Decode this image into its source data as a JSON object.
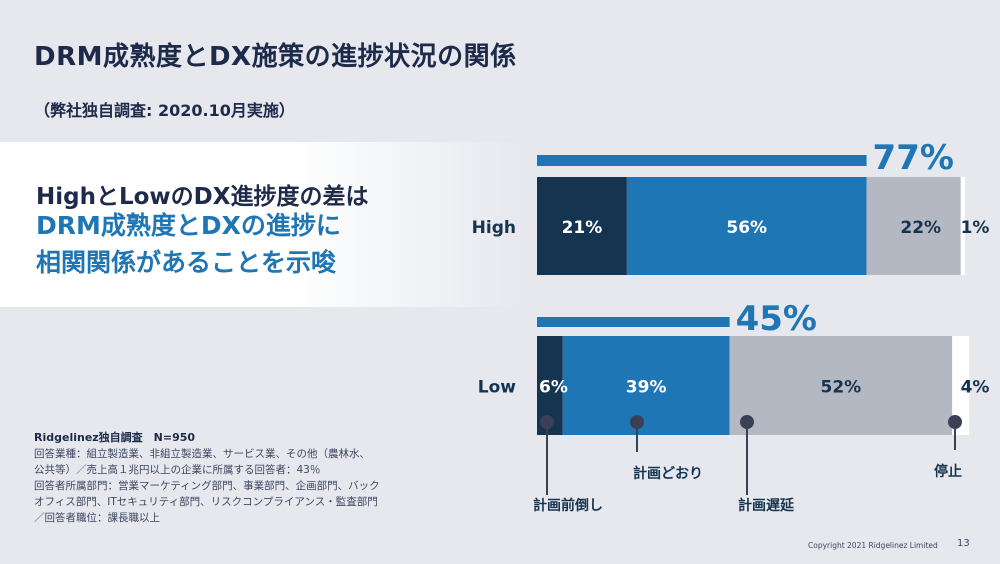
{
  "page": {
    "title": "DRM成熟度とDX施策の進捗状況の関係",
    "subtitle": "（弊社独自調査: 2020.10月実施）",
    "highlight": {
      "line1": "HighとLowのDX進捗度の差は",
      "line2": "DRM成熟度とDXの進捗に",
      "line3": "相関関係があることを示唆"
    },
    "footnote": {
      "heading": "Ridgelinez独自調査　N=950",
      "lines": [
        "回答業種：組立製造業、非組立製造業、サービス業、その他（農林水、",
        "公共等）／売上高１兆円以上の企業に所属する回答者：43％",
        "回答者所属部門：営業マーケティング部門、事業部門、企画部門、バック",
        "オフィス部門、ITセキュリティ部門、リスクコンプライアンス・監査部門",
        "／回答者職位：課長職以上"
      ]
    },
    "copyright": "Copyright 2021 Ridgelinez Limited",
    "page_number": "13"
  },
  "chart_data": {
    "type": "bar",
    "orientation": "horizontal",
    "stacked": true,
    "normalized": true,
    "categories": [
      "High",
      "Low"
    ],
    "series": [
      {
        "name": "計画前倒し",
        "values": [
          21,
          6
        ],
        "labels": [
          "21%",
          "6%"
        ],
        "color": "#14344f"
      },
      {
        "name": "計画どおり",
        "values": [
          56,
          39
        ],
        "labels": [
          "56%",
          "39%"
        ],
        "color": "#1f76b4"
      },
      {
        "name": "計画遅延",
        "values": [
          22,
          52
        ],
        "labels": [
          "22%",
          "52%"
        ],
        "color": "#b4b8c2"
      },
      {
        "name": "停止",
        "values": [
          1,
          4
        ],
        "labels": [
          "1%",
          "4%"
        ],
        "color": "#ffffff"
      }
    ],
    "totals": [
      {
        "category": "High",
        "value": 77,
        "label": "77%"
      },
      {
        "category": "Low",
        "value": 45,
        "label": "45%"
      }
    ],
    "xlim": [
      0,
      100
    ],
    "accent_color": "#1f76b4",
    "dark_color": "#14344f",
    "grid": false,
    "legend_placement": "bottom"
  }
}
